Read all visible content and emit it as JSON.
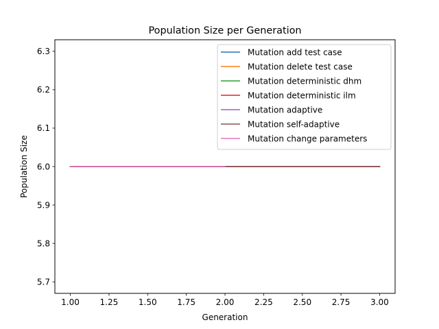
{
  "chart_data": {
    "type": "line",
    "title": "Population Size per Generation",
    "xlabel": "Generation",
    "ylabel": "Population Size",
    "xlim": [
      0.9,
      3.1
    ],
    "ylim": [
      5.67,
      6.33
    ],
    "xticks": [
      1.0,
      1.25,
      1.5,
      1.75,
      2.0,
      2.25,
      2.5,
      2.75,
      3.0
    ],
    "xtick_labels": [
      "1.00",
      "1.25",
      "1.50",
      "1.75",
      "2.00",
      "2.25",
      "2.50",
      "2.75",
      "3.00"
    ],
    "yticks": [
      5.7,
      5.8,
      5.9,
      6.0,
      6.1,
      6.2,
      6.3
    ],
    "ytick_labels": [
      "5.7",
      "5.8",
      "5.9",
      "6.0",
      "6.1",
      "6.2",
      "6.3"
    ],
    "grid": false,
    "legend_position": "top-right",
    "series": [
      {
        "name": "Mutation add test case",
        "color": "#1f77b4",
        "x": [
          1,
          2,
          3
        ],
        "y": [
          6,
          6,
          6
        ]
      },
      {
        "name": "Mutation delete test case",
        "color": "#ff7f0e",
        "x": [
          1,
          2,
          3
        ],
        "y": [
          6,
          6,
          6
        ]
      },
      {
        "name": "Mutation deterministic dhm",
        "color": "#2ca02c",
        "x": [
          1,
          2,
          3
        ],
        "y": [
          6,
          6,
          6
        ]
      },
      {
        "name": "Mutation deterministic ilm",
        "color": "#d62728",
        "x": [
          1,
          2,
          3
        ],
        "y": [
          6,
          6,
          6
        ]
      },
      {
        "name": "Mutation adaptive",
        "color": "#9467bd",
        "x": [
          1,
          2,
          3
        ],
        "y": [
          6,
          6,
          6
        ]
      },
      {
        "name": "Mutation self-adaptive",
        "color": "#8c564b",
        "x": [
          1,
          2,
          3
        ],
        "y": [
          6,
          6,
          6
        ]
      },
      {
        "name": "Mutation change parameters",
        "color": "#e377c2",
        "x": [
          1,
          2
        ],
        "y": [
          6,
          6
        ]
      }
    ]
  }
}
